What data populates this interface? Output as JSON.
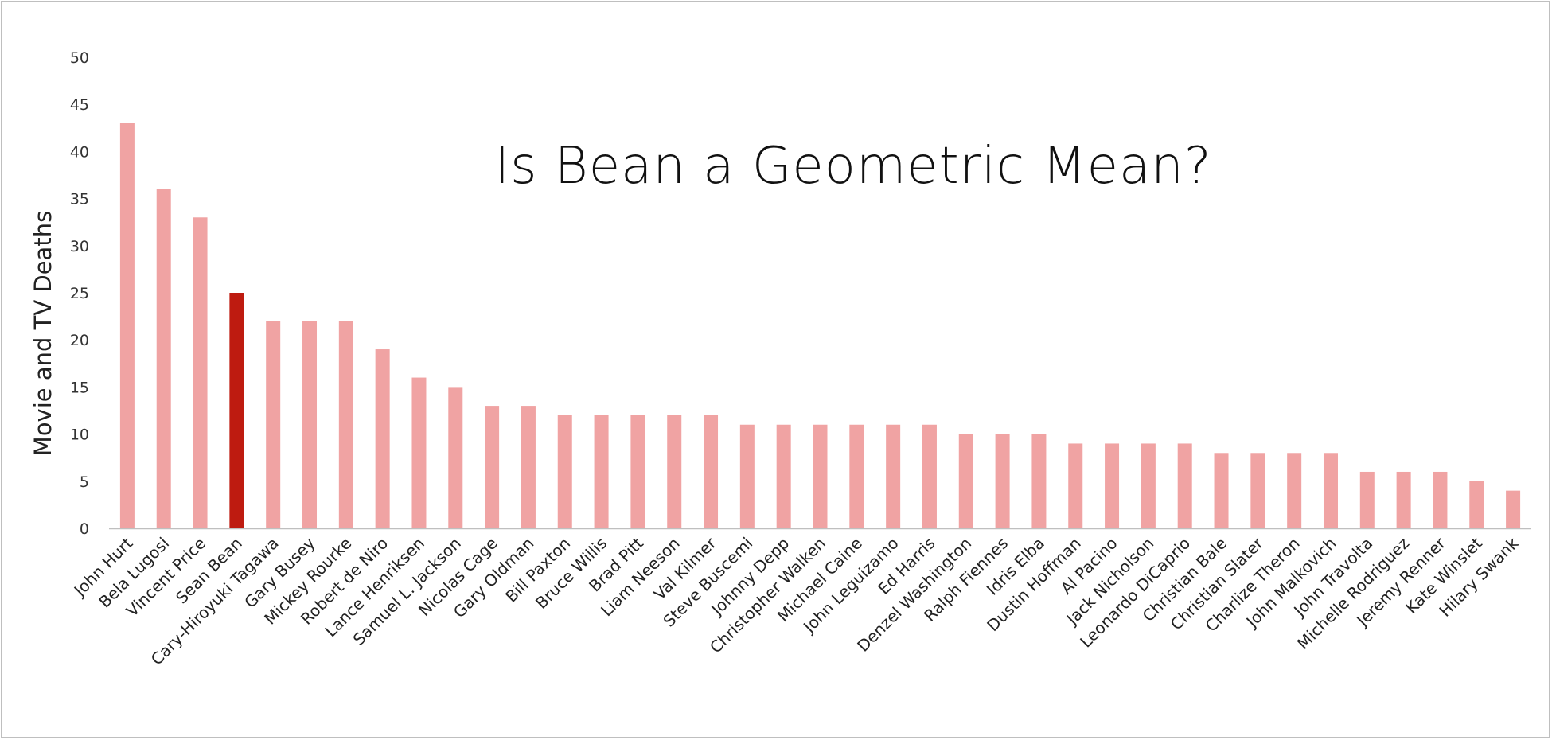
{
  "chart_data": {
    "type": "bar",
    "title": "Is Bean a Geometric Mean?",
    "xlabel": "",
    "ylabel": "Movie and TV Deaths",
    "ylim": [
      0,
      50
    ],
    "yticks": [
      0,
      5,
      10,
      15,
      20,
      25,
      30,
      35,
      40,
      45,
      50
    ],
    "grid": false,
    "legend": "none",
    "colors": {
      "bar": "#f0a3a3",
      "highlight": "#be1b10",
      "axis": "#bfbfbf"
    },
    "highlight_category": "Sean Bean",
    "categories": [
      "John Hurt",
      "Bela Lugosi",
      "Vincent Price",
      "Sean Bean",
      "Cary-Hiroyuki Tagawa",
      "Gary Busey",
      "Mickey Rourke",
      "Robert de Niro",
      "Lance Henriksen",
      "Samuel L. Jackson",
      "Nicolas Cage",
      "Gary Oldman",
      "Bill Paxton",
      "Bruce Willis",
      "Brad Pitt",
      "Liam Neeson",
      "Val Kilmer",
      "Steve Buscemi",
      "Johnny Depp",
      "Christopher Walken",
      "Michael Caine",
      "John Leguizamo",
      "Ed Harris",
      "Denzel Washington",
      "Ralph Fiennes",
      "Idris Elba",
      "Dustin Hoffman",
      "Al Pacino",
      "Jack Nicholson",
      "Leonardo DiCaprio",
      "Christian Bale",
      "Christian Slater",
      "Charlize Theron",
      "John Malkovich",
      "John Travolta",
      "Michelle Rodriguez",
      "Jeremy Renner",
      "Kate Winslet",
      "Hilary Swank"
    ],
    "values": [
      43,
      36,
      33,
      25,
      22,
      22,
      22,
      19,
      16,
      15,
      13,
      13,
      12,
      12,
      12,
      12,
      12,
      11,
      11,
      11,
      11,
      11,
      11,
      10,
      10,
      10,
      9,
      9,
      9,
      9,
      8,
      8,
      8,
      8,
      6,
      6,
      6,
      5,
      4
    ]
  }
}
